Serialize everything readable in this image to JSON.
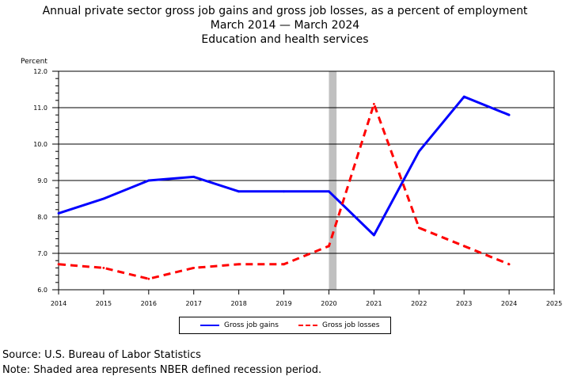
{
  "chart_data": {
    "type": "line",
    "title": "Annual private sector gross job gains and gross job losses, as a percent of employment",
    "subtitle_period": "March 2014 — March 2024",
    "subtitle_industry": "Education and health services",
    "ylabel": "Percent",
    "xlabel": "",
    "ylim": [
      6.0,
      12.0
    ],
    "xlim": [
      2014,
      2025
    ],
    "y_ticks": [
      "6.0",
      "7.0",
      "8.0",
      "9.0",
      "10.0",
      "11.0",
      "12.0"
    ],
    "x_ticks": [
      "2014",
      "2015",
      "2016",
      "2017",
      "2018",
      "2019",
      "2020",
      "2021",
      "2022",
      "2023",
      "2024",
      "2025"
    ],
    "grid": "horizontal",
    "legend_position": "bottom",
    "recession_shading": {
      "start": 2020.0,
      "end": 2020.17,
      "color": "#c0c0c0"
    },
    "x": [
      2014,
      2015,
      2016,
      2017,
      2018,
      2019,
      2020,
      2021,
      2022,
      2023,
      2024
    ],
    "series": [
      {
        "name": "Gross job gains",
        "color": "#0000ff",
        "style": "solid",
        "values": [
          8.1,
          8.5,
          9.0,
          9.1,
          8.7,
          8.7,
          8.7,
          7.5,
          9.8,
          11.3,
          10.8
        ]
      },
      {
        "name": "Gross job losses",
        "color": "#ff0000",
        "style": "dashed",
        "values": [
          6.7,
          6.6,
          6.3,
          6.6,
          6.7,
          6.7,
          7.2,
          11.1,
          7.7,
          7.2,
          6.7
        ]
      }
    ]
  },
  "footer": {
    "source": "Source: U.S. Bureau of Labor Statistics",
    "note": "Note: Shaded area represents NBER defined recession period."
  }
}
